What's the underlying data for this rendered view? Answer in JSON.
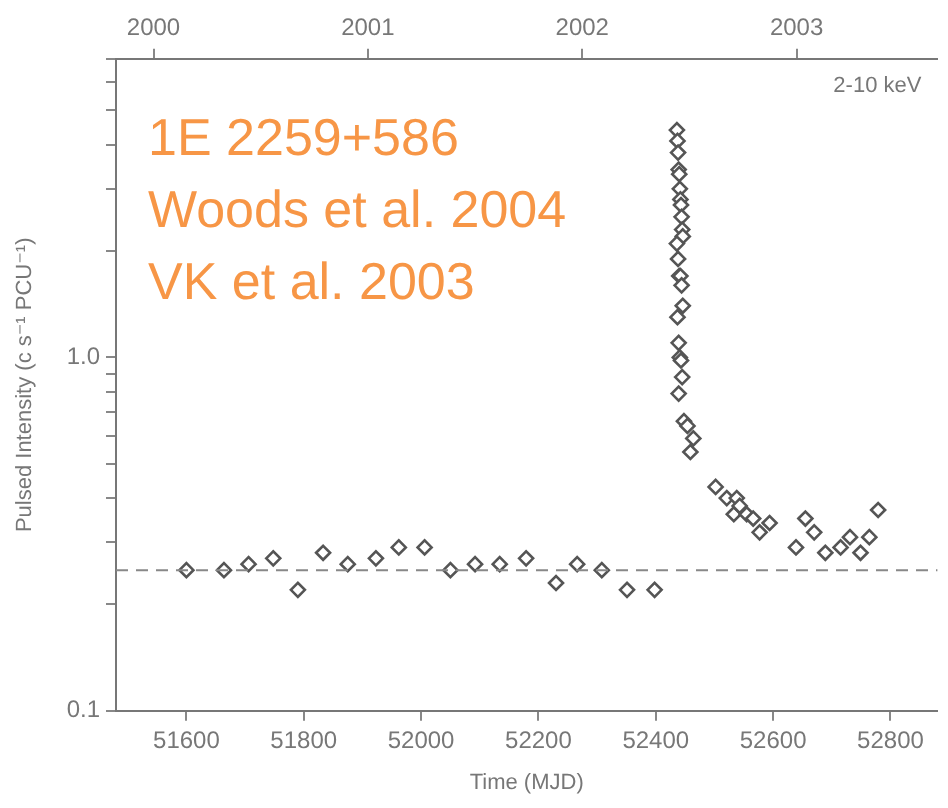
{
  "chart_data": {
    "type": "scatter",
    "xlabel": "Time (MJD)",
    "ylabel": "Pulsed Intensity (c s⁻¹ PCU⁻¹)",
    "annotations": [
      "1E 2259+586",
      "Woods et al. 2004",
      "VK et al. 2003",
      "2-10 keV"
    ],
    "x": [
      51600,
      51664,
      51706,
      51748,
      51790,
      51833,
      51875,
      51923,
      51962,
      52006,
      52050,
      52092,
      52134,
      52179,
      52230,
      52266,
      52308,
      52351,
      52398,
      52436,
      52437,
      52438,
      52439,
      52440,
      52441,
      52442,
      52443,
      52444,
      52445,
      52446,
      52436,
      52438,
      52440,
      52442,
      52444,
      52446,
      52437,
      52439,
      52441,
      52443,
      52445,
      52439,
      52448,
      52454,
      52459,
      52464,
      52502,
      52521,
      52533,
      52538,
      52543,
      52555,
      52566,
      52577,
      52594,
      52639,
      52655,
      52670,
      52689,
      52715,
      52731,
      52749,
      52764,
      52779
    ],
    "series": [
      {
        "color": "#555555",
        "values": [
          0.25,
          0.25,
          0.26,
          0.27,
          0.22,
          0.28,
          0.26,
          0.27,
          0.29,
          0.29,
          0.25,
          0.26,
          0.26,
          0.27,
          0.23,
          0.26,
          0.25,
          0.22,
          0.22,
          4.4,
          4.1,
          3.8,
          3.4,
          3.3,
          3.0,
          2.8,
          2.7,
          2.5,
          2.3,
          2.2,
          2.1,
          1.9,
          1.7,
          1.7,
          1.6,
          1.4,
          1.3,
          1.1,
          1.0,
          0.98,
          0.88,
          0.79,
          0.66,
          0.64,
          0.54,
          0.59,
          0.43,
          0.4,
          0.36,
          0.4,
          0.38,
          0.36,
          0.35,
          0.32,
          0.34,
          0.29,
          0.35,
          0.32,
          0.28,
          0.29,
          0.31,
          0.28,
          0.31,
          0.37
        ]
      }
    ],
    "xlim": [
      51480,
      52880
    ],
    "xticks": [
      51600,
      51800,
      52000,
      52200,
      52400,
      52600,
      52800
    ],
    "x2lim": [
      1999.825,
      2003.657
    ],
    "x2ticks": [
      2000,
      2001,
      2002,
      2003
    ],
    "ylim": [
      0.1,
      7
    ],
    "yticks": [
      {
        "value": 0.1,
        "label": "0.1"
      },
      {
        "value": 0.2,
        "label": null
      },
      {
        "value": 0.3,
        "label": null
      },
      {
        "value": 0.4,
        "label": null
      },
      {
        "value": 0.5,
        "label": null
      },
      {
        "value": 0.6,
        "label": null
      },
      {
        "value": 0.7,
        "label": null
      },
      {
        "value": 0.8,
        "label": null
      },
      {
        "value": 0.9,
        "label": null
      },
      {
        "value": 1,
        "label": "1.0"
      },
      {
        "value": 2,
        "label": null
      },
      {
        "value": 3,
        "label": null
      },
      {
        "value": 4,
        "label": null
      },
      {
        "value": 5,
        "label": null
      },
      {
        "value": 6,
        "label": null
      },
      {
        "value": 7,
        "label": null
      }
    ],
    "log": "y",
    "marker": "diamond",
    "legend": false,
    "grid": false,
    "ref_lines": [
      {
        "axis": "y",
        "value": 0.25,
        "line_style": "dashed",
        "color": "#888888"
      }
    ]
  }
}
